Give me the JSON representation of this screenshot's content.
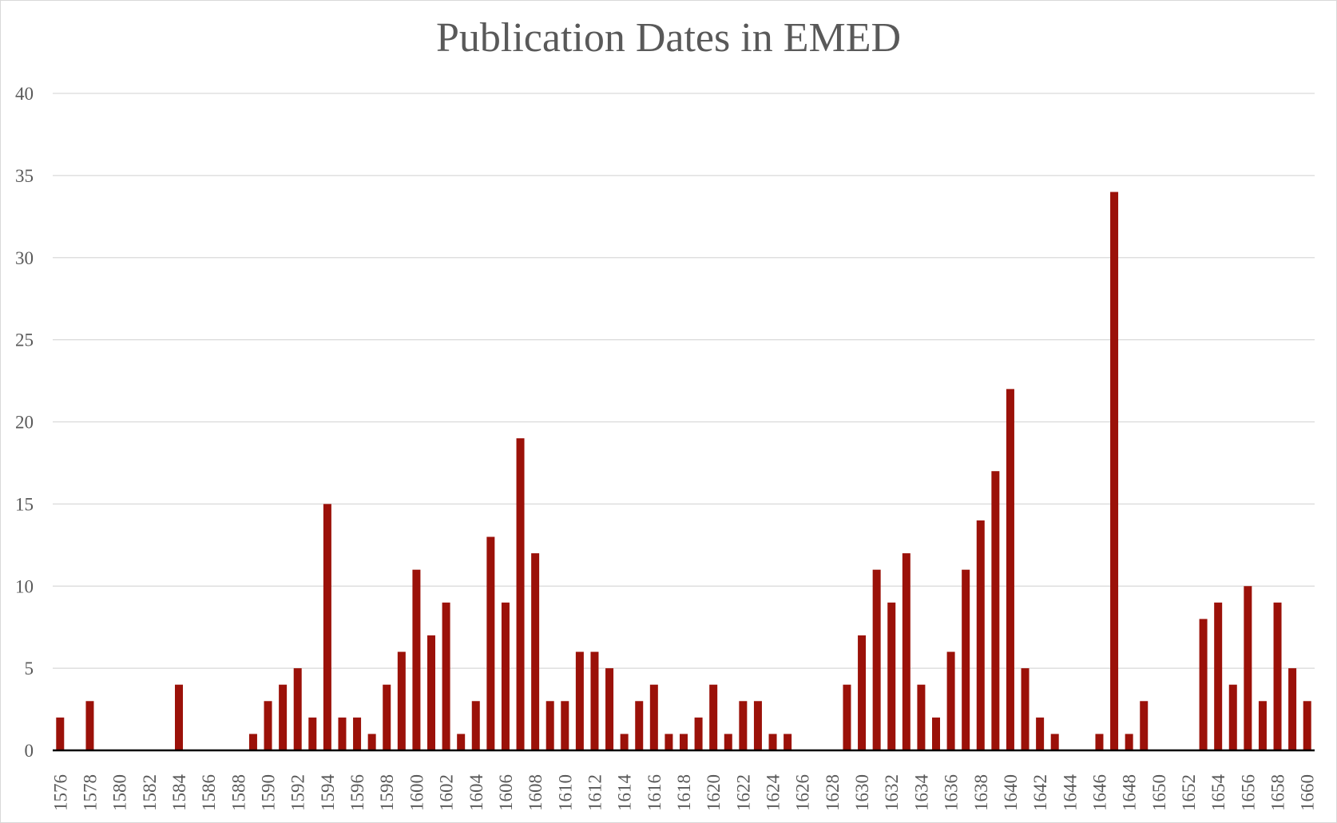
{
  "chart_data": {
    "type": "bar",
    "title": "Publication Dates in EMED",
    "xlabel": "",
    "ylabel": "",
    "ylim": [
      0,
      40
    ],
    "yticks": [
      0,
      5,
      10,
      15,
      20,
      25,
      30,
      35,
      40
    ],
    "grid": true,
    "legend": "none",
    "bar_color": "#9B1109",
    "categories": [
      "1576",
      "1577",
      "1578",
      "1579",
      "1580",
      "1581",
      "1582",
      "1583",
      "1584",
      "1585",
      "1586",
      "1587",
      "1588",
      "1589",
      "1590",
      "1591",
      "1592",
      "1593",
      "1594",
      "1595",
      "1596",
      "1597",
      "1598",
      "1599",
      "1600",
      "1601",
      "1602",
      "1603",
      "1604",
      "1605",
      "1606",
      "1607",
      "1608",
      "1609",
      "1610",
      "1611",
      "1612",
      "1613",
      "1614",
      "1615",
      "1616",
      "1617",
      "1618",
      "1619",
      "1620",
      "1621",
      "1622",
      "1623",
      "1624",
      "1625",
      "1626",
      "1627",
      "1628",
      "1629",
      "1630",
      "1631",
      "1632",
      "1633",
      "1634",
      "1635",
      "1636",
      "1637",
      "1638",
      "1639",
      "1640",
      "1641",
      "1642",
      "1643",
      "1644",
      "1645",
      "1646",
      "1647",
      "1648",
      "1649",
      "1650",
      "1651",
      "1652",
      "1653",
      "1654",
      "1655",
      "1656",
      "1657",
      "1658",
      "1659",
      "1660"
    ],
    "tick_labels": [
      "1576",
      "1578",
      "1580",
      "1582",
      "1584",
      "1586",
      "1588",
      "1590",
      "1592",
      "1594",
      "1596",
      "1598",
      "1600",
      "1602",
      "1604",
      "1606",
      "1608",
      "1610",
      "1612",
      "1614",
      "1616",
      "1618",
      "1620",
      "1622",
      "1624",
      "1626",
      "1628",
      "1630",
      "1632",
      "1634",
      "1636",
      "1638",
      "1640",
      "1642",
      "1644",
      "1646",
      "1648",
      "1650",
      "1652",
      "1654",
      "1656",
      "1658",
      "1660"
    ],
    "values": [
      2,
      0,
      3,
      0,
      0,
      0,
      0,
      0,
      4,
      0,
      0,
      0,
      0,
      1,
      3,
      4,
      5,
      2,
      15,
      2,
      2,
      1,
      4,
      6,
      11,
      7,
      9,
      1,
      3,
      13,
      9,
      19,
      12,
      3,
      3,
      6,
      6,
      5,
      1,
      3,
      4,
      1,
      1,
      2,
      4,
      1,
      3,
      3,
      1,
      1,
      0,
      0,
      0,
      4,
      7,
      11,
      9,
      12,
      4,
      2,
      6,
      11,
      14,
      17,
      22,
      5,
      2,
      1,
      0,
      0,
      1,
      34,
      1,
      3,
      0,
      0,
      0,
      8,
      9,
      4,
      10,
      3,
      9,
      5,
      3
    ]
  }
}
